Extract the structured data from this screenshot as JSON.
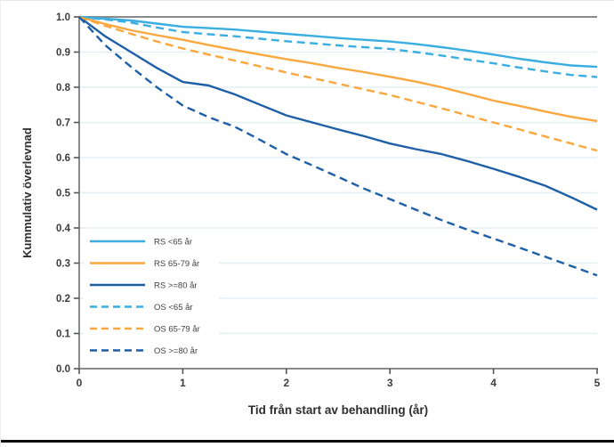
{
  "chart_data": {
    "type": "line",
    "title": "",
    "xlabel": "Tid från start av behandling (år)",
    "ylabel": "Kummulativ överlevnad",
    "xlim": [
      0,
      5
    ],
    "ylim": [
      0.0,
      1.0
    ],
    "xticks": [
      0,
      1,
      2,
      3,
      4,
      5
    ],
    "yticks": [
      0.0,
      0.1,
      0.2,
      0.3,
      0.4,
      0.5,
      0.6,
      0.7,
      0.8,
      0.9,
      1.0
    ],
    "grid": true,
    "legend_position": "inside-lower-left",
    "x": [
      0,
      0.25,
      0.5,
      0.75,
      1,
      1.25,
      1.5,
      1.75,
      2,
      2.25,
      2.5,
      2.75,
      3,
      3.25,
      3.5,
      3.75,
      4,
      4.25,
      4.5,
      4.75,
      5
    ],
    "series": [
      {
        "name": "RS <65 år",
        "color": "#3aaee0",
        "dash": false,
        "values": [
          1.0,
          0.995,
          0.99,
          0.981,
          0.972,
          0.968,
          0.964,
          0.958,
          0.952,
          0.946,
          0.94,
          0.935,
          0.93,
          0.923,
          0.914,
          0.904,
          0.893,
          0.881,
          0.871,
          0.862,
          0.858
        ]
      },
      {
        "name": "RS 65-79 år",
        "color": "#f9a73e",
        "dash": false,
        "values": [
          1.0,
          0.98,
          0.962,
          0.948,
          0.935,
          0.92,
          0.906,
          0.893,
          0.88,
          0.868,
          0.855,
          0.843,
          0.83,
          0.816,
          0.8,
          0.781,
          0.762,
          0.747,
          0.731,
          0.716,
          0.704
        ]
      },
      {
        "name": "RS >=80 år",
        "color": "#1f5fa7",
        "dash": false,
        "values": [
          1.0,
          0.945,
          0.9,
          0.855,
          0.815,
          0.805,
          0.78,
          0.75,
          0.72,
          0.7,
          0.68,
          0.661,
          0.64,
          0.624,
          0.61,
          0.59,
          0.568,
          0.545,
          0.52,
          0.487,
          0.452
        ]
      },
      {
        "name": "OS <65 år",
        "color": "#3aaee0",
        "dash": true,
        "values": [
          1.0,
          0.993,
          0.984,
          0.97,
          0.957,
          0.951,
          0.945,
          0.938,
          0.931,
          0.925,
          0.919,
          0.914,
          0.909,
          0.9,
          0.89,
          0.879,
          0.868,
          0.856,
          0.845,
          0.835,
          0.829
        ]
      },
      {
        "name": "OS 65-79 år",
        "color": "#f9a73e",
        "dash": true,
        "values": [
          1.0,
          0.975,
          0.952,
          0.93,
          0.91,
          0.893,
          0.876,
          0.859,
          0.842,
          0.826,
          0.81,
          0.794,
          0.778,
          0.759,
          0.74,
          0.72,
          0.7,
          0.68,
          0.66,
          0.64,
          0.62
        ]
      },
      {
        "name": "OS >=80 år",
        "color": "#1f5fa7",
        "dash": true,
        "values": [
          1.0,
          0.92,
          0.858,
          0.8,
          0.748,
          0.715,
          0.688,
          0.65,
          0.61,
          0.578,
          0.545,
          0.512,
          0.482,
          0.452,
          0.422,
          0.395,
          0.37,
          0.344,
          0.318,
          0.292,
          0.265
        ]
      }
    ],
    "colors": {
      "light_blue": "#3aaee0",
      "orange": "#f9a73e",
      "dark_blue": "#1f5fa7",
      "gridline": "#e4eff5",
      "axis_frame": "#8a8a8a",
      "tick": "#555555",
      "tick_label": "#3d3d3d",
      "legend_text": "#3f3f3f"
    }
  }
}
